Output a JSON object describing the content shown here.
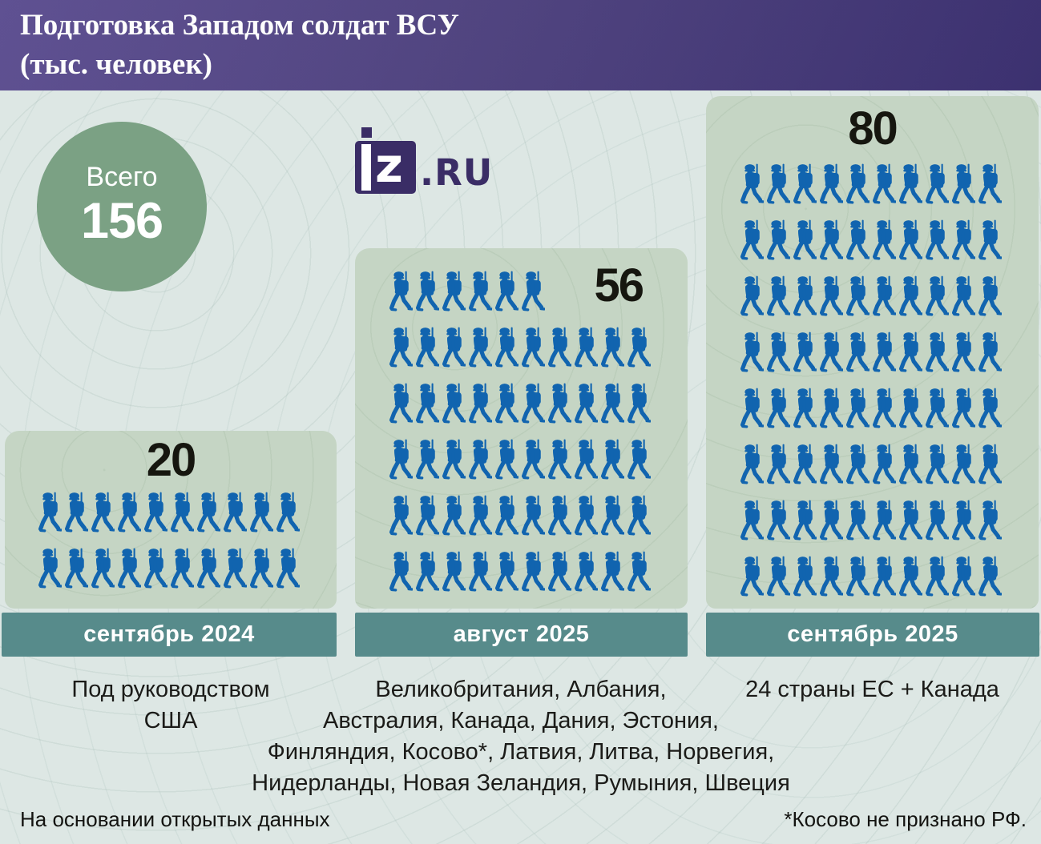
{
  "header": {
    "title_line1": "Подготовка Западом солдат ВСУ",
    "title_line2": "(тыс. человек)"
  },
  "total_badge": {
    "label": "Всего",
    "value": "156"
  },
  "logo": {
    "mark_letter": "z",
    "suffix": ".RU"
  },
  "chart_data": {
    "type": "pictogram_bar",
    "title": "Подготовка Западом солдат ВСУ",
    "subtitle": "(тыс. человек)",
    "unit": "тыс. человек",
    "icon": "soldier-icon",
    "icon_unit_value": 1,
    "icons_per_row": 10,
    "total": 156,
    "total_label": "Всего",
    "categories": [
      "сентябрь 2024",
      "август 2025",
      "сентябрь 2025"
    ],
    "values": [
      20,
      56,
      80
    ],
    "annotations": [
      "Под руководством США",
      "Великобритания, Албания, Австралия, Канада, Дания, Эстония, Финляндия, Косово*, Латвия, Литва, Норвегия, Нидерланды, Новая Зеландия, Румыния, Швеция",
      "24 страны ЕС + Канада"
    ],
    "source_note": "На основании открытых данных",
    "footnote": "*Косово не признано РФ."
  },
  "columns": [
    {
      "value": "20",
      "count": 20,
      "label": "сентябрь 2024",
      "description_lines": [
        "Под руководством",
        "США"
      ]
    },
    {
      "value": "56",
      "count": 56,
      "label": "август 2025",
      "description_lines": [
        "Великобритания, Албания,",
        "Австралия, Канада, Дания, Эстония,",
        "Финляндия, Косово*, Латвия, Литва, Норвегия,",
        "Нидерланды, Новая Зеландия, Румыния, Швеция"
      ]
    },
    {
      "value": "80",
      "count": 80,
      "label": "сентябрь 2025",
      "description_lines": [
        "24 страны ЕС + Канада"
      ]
    }
  ],
  "footer": {
    "left": "На основании открытых данных",
    "right": "*Косово не признано РФ."
  },
  "colors": {
    "soldier_blue": "#1164af",
    "panel_green": "#c5d5c4",
    "bar_teal": "#578b8b",
    "circle_green": "#7ba184",
    "header_purple_light": "#5f5192",
    "header_purple_dark": "#3c3170",
    "logo_purple": "#3a2d66",
    "background": "#dde7e4"
  }
}
